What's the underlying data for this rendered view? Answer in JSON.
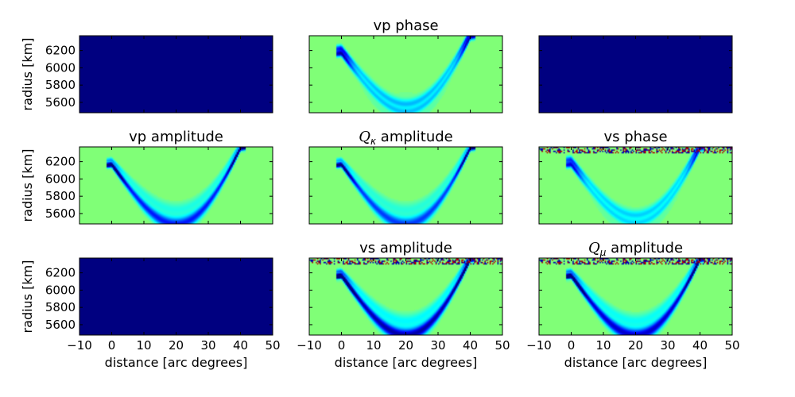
{
  "chart_data": {
    "type": "heatmap",
    "layout": {
      "rows": 3,
      "cols": 3
    },
    "xlabel": "distance [arc degrees]",
    "ylabel": "radius [km]",
    "xlim": [
      -10,
      50
    ],
    "ylim": [
      5480,
      6371
    ],
    "xticks": [
      -10,
      0,
      10,
      20,
      30,
      40,
      50
    ],
    "xtick_labels": [
      "−10",
      "0",
      "10",
      "20",
      "30",
      "40",
      "50"
    ],
    "yticks": [
      5600,
      5800,
      6000,
      6200
    ],
    "yticks_labels": [
      "5600",
      "5800",
      "6000",
      "6200"
    ],
    "colormap": "jet",
    "colors": {
      "background": "#80ff77",
      "empty": "#000080"
    },
    "source": {
      "x": 0,
      "r": 6180
    },
    "receiver": {
      "x": 40,
      "r": 6371
    },
    "panels": [
      {
        "id": "p11",
        "row": 0,
        "col": 0,
        "title": "",
        "mode": "empty"
      },
      {
        "id": "p12",
        "row": 0,
        "col": 1,
        "title": "vp phase",
        "mode": "phase",
        "strength": 0.8
      },
      {
        "id": "p13",
        "row": 0,
        "col": 2,
        "title": "",
        "mode": "empty"
      },
      {
        "id": "p21",
        "row": 1,
        "col": 0,
        "title": "vp amplitude",
        "mode": "amp",
        "strength": 1.0
      },
      {
        "id": "p22",
        "row": 1,
        "col": 1,
        "title": "Qκ amplitude",
        "title_base": "Q",
        "title_sub": "κ",
        "title_rest": " amplitude",
        "mode": "amp",
        "strength": 0.9
      },
      {
        "id": "p23",
        "row": 1,
        "col": 2,
        "title": "vs phase",
        "mode": "phase",
        "strength": 0.7,
        "noise": true
      },
      {
        "id": "p31",
        "row": 2,
        "col": 0,
        "title": "",
        "mode": "empty"
      },
      {
        "id": "p32",
        "row": 2,
        "col": 1,
        "title": "vs amplitude",
        "mode": "amp",
        "strength": 1.3,
        "noise": true
      },
      {
        "id": "p33",
        "row": 2,
        "col": 2,
        "title": "Qμ amplitude",
        "title_base": "Q",
        "title_sub": "μ",
        "title_rest": " amplitude",
        "mode": "amp",
        "strength": 1.2,
        "noise": true
      }
    ]
  }
}
